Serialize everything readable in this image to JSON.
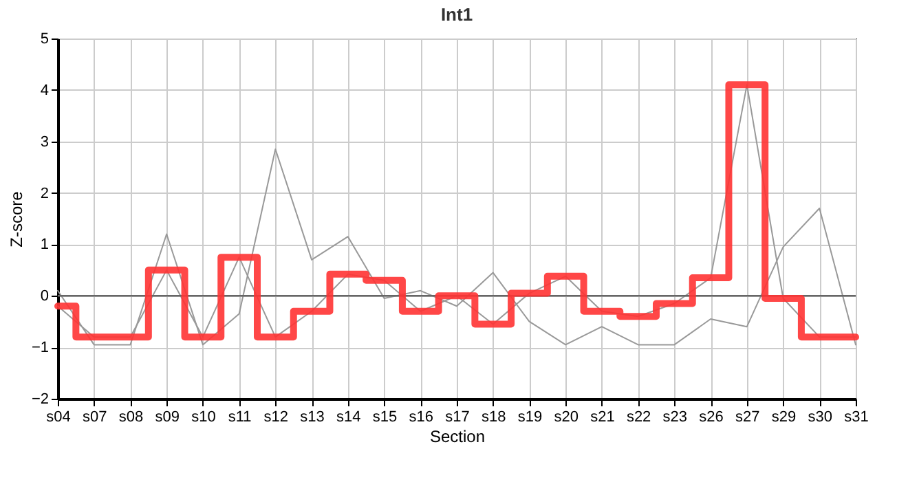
{
  "chart_data": {
    "type": "line",
    "title": "Int1",
    "xlabel": "Section",
    "ylabel": "Z-score",
    "categories": [
      "s04",
      "s07",
      "s08",
      "s09",
      "s10",
      "s11",
      "s12",
      "s13",
      "s14",
      "s15",
      "s16",
      "s17",
      "s18",
      "s19",
      "s20",
      "s21",
      "s22",
      "s23",
      "s26",
      "s27",
      "s29",
      "s30",
      "s31"
    ],
    "series": [
      {
        "color": "#999999",
        "values": [
          0.1,
          -0.95,
          -0.95,
          1.2,
          -0.95,
          -0.35,
          2.85,
          0.7,
          1.15,
          -0.05,
          0.1,
          -0.2,
          0.45,
          -0.5,
          -0.95,
          -0.6,
          -0.95,
          -0.95,
          -0.45,
          -0.6,
          0.95,
          1.7,
          -0.95
        ]
      },
      {
        "color": "#999999",
        "values": [
          -0.2,
          -0.8,
          -0.8,
          0.5,
          -0.8,
          0.75,
          -0.8,
          -0.3,
          0.42,
          0.3,
          -0.3,
          0.0,
          -0.55,
          0.05,
          0.38,
          -0.3,
          -0.4,
          -0.15,
          0.35,
          4.1,
          -0.05,
          -0.8,
          -0.8
        ]
      },
      {
        "type": "step",
        "color": "#ff3333",
        "values": [
          -0.2,
          -0.8,
          -0.8,
          0.5,
          -0.8,
          0.75,
          -0.8,
          -0.3,
          0.42,
          0.3,
          -0.3,
          0.0,
          -0.55,
          0.05,
          0.38,
          -0.3,
          -0.4,
          -0.15,
          0.35,
          4.1,
          -0.05,
          -0.8,
          -0.8
        ]
      }
    ],
    "ylim": [
      -2,
      5
    ],
    "yticks": [
      -2,
      -1,
      0,
      1,
      2,
      3,
      4,
      5
    ],
    "grid": true,
    "ref_lines": [
      {
        "axis": "y",
        "value": 0,
        "color": "#666666"
      }
    ]
  }
}
